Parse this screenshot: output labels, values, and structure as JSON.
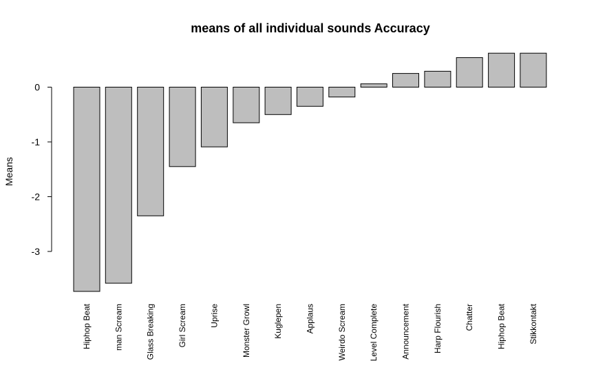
{
  "chart_data": {
    "type": "bar",
    "title": "means of all individual sounds Accuracy",
    "xlabel": "",
    "ylabel": "Means",
    "categories": [
      "Hiphop Beat",
      "man Scream",
      "Glass Breaking",
      "Girl Scream",
      "Uprise",
      "Monster Growl",
      "Kuglepen",
      "Applaus",
      "Weirdo Scream",
      "Level Complete",
      "Announcement",
      "Harp Flourish",
      "Chatter",
      "Hiphop Beat",
      "Stikkontakt"
    ],
    "values": [
      -3.73,
      -3.58,
      -2.35,
      -1.45,
      -1.09,
      -0.65,
      -0.5,
      -0.35,
      -0.18,
      0.06,
      0.25,
      0.29,
      0.54,
      0.62,
      0.62
    ],
    "yticks": [
      0,
      -1,
      -2,
      -3
    ],
    "ylim": [
      -3.75,
      0.65
    ],
    "bar_color": "#bebebe",
    "grid": false
  }
}
